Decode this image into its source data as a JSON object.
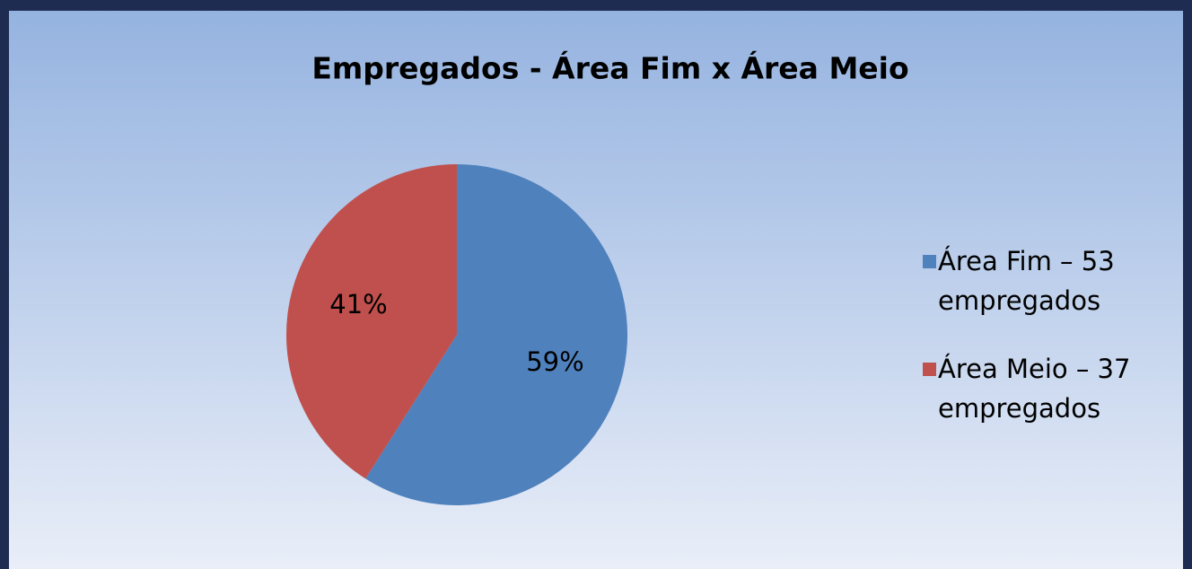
{
  "chart_data": {
    "type": "pie",
    "title": "Empregados  - Área Fim x Área Meio",
    "categories": [
      "Área Fim – 53 empregados",
      "Área Meio – 37 empregados"
    ],
    "values": [
      59,
      41
    ],
    "value_labels": [
      "59%",
      "41%"
    ],
    "colors": [
      "#4f81bd",
      "#c0504d"
    ],
    "legend": "right"
  }
}
